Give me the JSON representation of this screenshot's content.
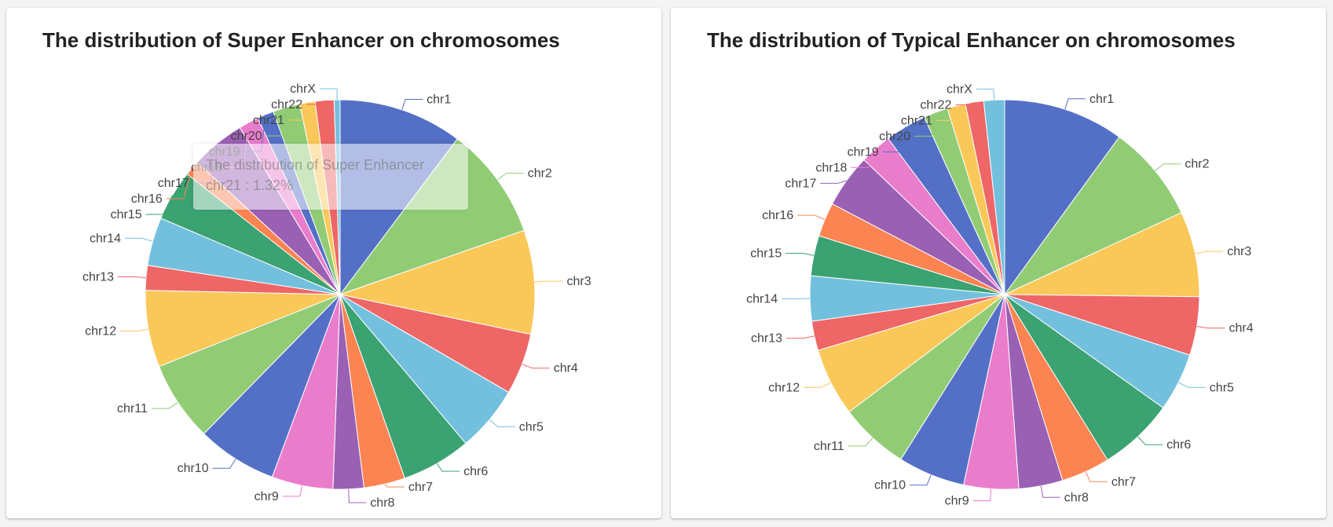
{
  "chart_data": [
    {
      "type": "pie",
      "title": "The distribution of Super Enhancer on chromosomes",
      "categories": [
        "chr1",
        "chr2",
        "chr3",
        "chr4",
        "chr5",
        "chr6",
        "chr7",
        "chr8",
        "chr9",
        "chr10",
        "chr11",
        "chr12",
        "chr13",
        "chr14",
        "chr15",
        "chr16",
        "chr17",
        "chr18",
        "chr19",
        "chr20",
        "chr21",
        "chr22",
        "chrX"
      ],
      "values": [
        10.5,
        9.6,
        8.8,
        5.2,
        5.6,
        5.9,
        3.5,
        2.6,
        5.2,
        6.8,
        6.8,
        6.5,
        2.1,
        4.1,
        4.3,
        1.3,
        4.6,
        1.7,
        1.4,
        2.3,
        1.3,
        1.6,
        0.5
      ],
      "tooltip": {
        "title": "The distribution of Super Enhancer",
        "text": "chr21 : 1.32%"
      }
    },
    {
      "type": "pie",
      "title": "The distribution of Typical Enhancer on chromosomes",
      "categories": [
        "chr1",
        "chr2",
        "chr3",
        "chr4",
        "chr5",
        "chr6",
        "chr7",
        "chr8",
        "chr9",
        "chr10",
        "chr11",
        "chr12",
        "chr13",
        "chr14",
        "chr15",
        "chr16",
        "chr17",
        "chr18",
        "chr19",
        "chr20",
        "chr21",
        "chr22",
        "chrX"
      ],
      "values": [
        9.9,
        8.0,
        7.0,
        4.8,
        4.8,
        6.2,
        4.0,
        3.6,
        4.5,
        5.5,
        5.7,
        5.6,
        2.4,
        3.7,
        3.3,
        2.8,
        4.4,
        2.6,
        3.4,
        2.0,
        1.5,
        1.5,
        1.7
      ]
    }
  ],
  "colors": [
    "#5470c6",
    "#91cc75",
    "#fac858",
    "#ee6666",
    "#73c0de",
    "#3ba272",
    "#fc8452",
    "#9a60b4",
    "#ea7ccc"
  ]
}
